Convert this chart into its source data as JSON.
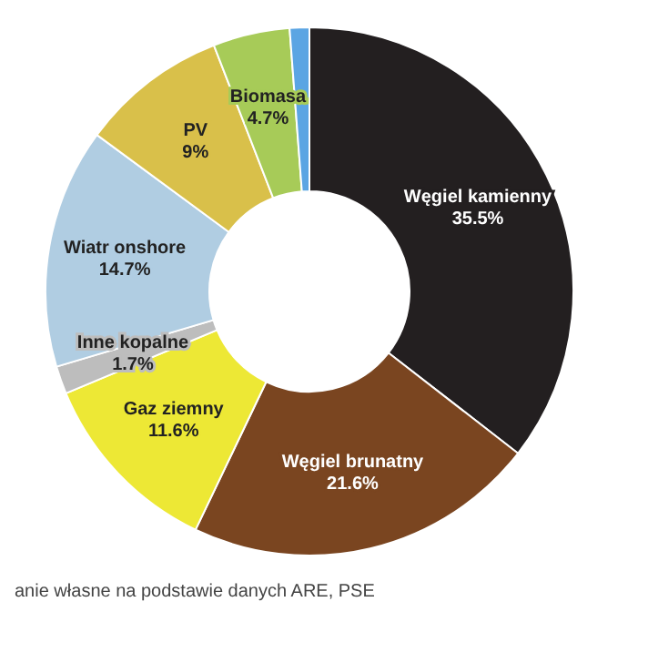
{
  "chart_data": {
    "type": "donut",
    "categories": [
      "Węgiel kamienny",
      "Węgiel brunatny",
      "Gaz ziemny",
      "Inne kopalne",
      "Wiatr onshore",
      "PV",
      "Biomasa",
      null
    ],
    "values": [
      35.5,
      21.6,
      11.6,
      1.7,
      14.7,
      9,
      4.7,
      1.2
    ],
    "colors": [
      "#231f20",
      "#7a4520",
      "#ede835",
      "#bdbdbd",
      "#b0cde2",
      "#d9c04a",
      "#a7cb58",
      "#5ba5e3"
    ],
    "value_labels": [
      "35.5%",
      "21.6%",
      "11.6%",
      "1.7%",
      "14.7%",
      "9%",
      "4.7%",
      null
    ],
    "annotations": [
      "anie własne na podstawie danych ARE, PSE"
    ],
    "legend": false
  }
}
